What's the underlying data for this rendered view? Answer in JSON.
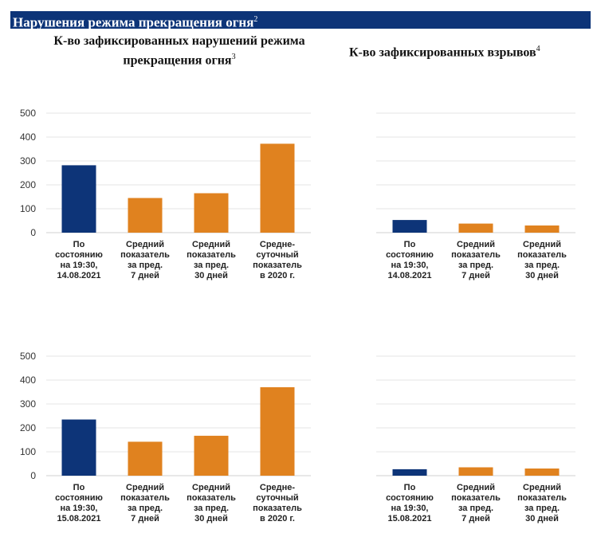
{
  "header": {
    "title": "Нарушения режима прекращения огня",
    "title_sup": "2",
    "left_title": "К-во зафиксированных нарушений режима прекращения огня",
    "left_title_sup": "3",
    "right_title": "К-во зафиксированных взрывов",
    "right_title_sup": "4"
  },
  "colors": {
    "current": "#0d3478",
    "average": "#e0821f",
    "header": "#0d3478",
    "grid": "#e6e6e6"
  },
  "chart_data": [
    {
      "type": "bar",
      "ylim": [
        0,
        500
      ],
      "yticks": [
        "0",
        "100",
        "200",
        "300",
        "400",
        "500"
      ],
      "categories": [
        [
          "По",
          "состоянию",
          "на 19:30,",
          "14.08.2021"
        ],
        [
          "Средний",
          "показатель",
          "за пред.",
          "7 дней"
        ],
        [
          "Средний",
          "показатель",
          "за пред.",
          "30 дней"
        ],
        [
          "Средне-",
          "суточный",
          "показатель",
          "в 2020 г."
        ]
      ],
      "values": [
        282,
        145,
        165,
        372
      ],
      "kinds": [
        "current",
        "average",
        "average",
        "average"
      ]
    },
    {
      "type": "bar",
      "ylim": [
        0,
        500
      ],
      "categories": [
        [
          "По",
          "состоянию",
          "на 19:30,",
          "14.08.2021"
        ],
        [
          "Средний",
          "показатель",
          "за пред.",
          "7 дней"
        ],
        [
          "Средний",
          "показатель",
          "за пред.",
          "30 дней"
        ]
      ],
      "values": [
        53,
        38,
        30
      ],
      "kinds": [
        "current",
        "average",
        "average"
      ]
    },
    {
      "type": "bar",
      "ylim": [
        0,
        500
      ],
      "yticks": [
        "0",
        "100",
        "200",
        "300",
        "400",
        "500"
      ],
      "categories": [
        [
          "По",
          "состоянию",
          "на 19:30,",
          "15.08.2021"
        ],
        [
          "Средний",
          "показатель",
          "за пред.",
          "7 дней"
        ],
        [
          "Средний",
          "показатель",
          "за пред.",
          "30 дней"
        ],
        [
          "Средне-",
          "суточный",
          "показатель",
          "в 2020 г."
        ]
      ],
      "values": [
        235,
        142,
        167,
        370
      ],
      "kinds": [
        "current",
        "average",
        "average",
        "average"
      ]
    },
    {
      "type": "bar",
      "ylim": [
        0,
        500
      ],
      "categories": [
        [
          "По",
          "состоянию",
          "на 19:30,",
          "15.08.2021"
        ],
        [
          "Средний",
          "показатель",
          "за пред.",
          "7 дней"
        ],
        [
          "Средний",
          "показатель",
          "за пред.",
          "30 дней"
        ]
      ],
      "values": [
        27,
        35,
        30
      ],
      "kinds": [
        "current",
        "average",
        "average"
      ]
    }
  ]
}
